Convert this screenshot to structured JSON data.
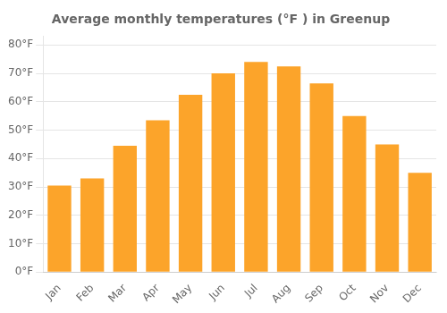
{
  "chart_data": {
    "type": "bar",
    "title": "Average monthly temperatures (°F ) in Greenup",
    "categories": [
      "Jan",
      "Feb",
      "Mar",
      "Apr",
      "May",
      "Jun",
      "Jul",
      "Aug",
      "Sep",
      "Oct",
      "Nov",
      "Dec"
    ],
    "values": [
      30.5,
      33.0,
      44.5,
      53.5,
      62.5,
      70.0,
      74.0,
      72.5,
      66.5,
      55.0,
      45.0,
      35.0
    ],
    "color": "#FCA42A",
    "ylim": [
      0,
      83
    ],
    "yticks": [
      {
        "value": 0,
        "label": "0°F"
      },
      {
        "value": 10,
        "label": "10°F"
      },
      {
        "value": 20,
        "label": "20°F"
      },
      {
        "value": 30,
        "label": "30°F"
      },
      {
        "value": 40,
        "label": "40°F"
      },
      {
        "value": 50,
        "label": "50°F"
      },
      {
        "value": 60,
        "label": "60°F"
      },
      {
        "value": 70,
        "label": "70°F"
      },
      {
        "value": 80,
        "label": "80°F"
      }
    ],
    "grid": true
  }
}
